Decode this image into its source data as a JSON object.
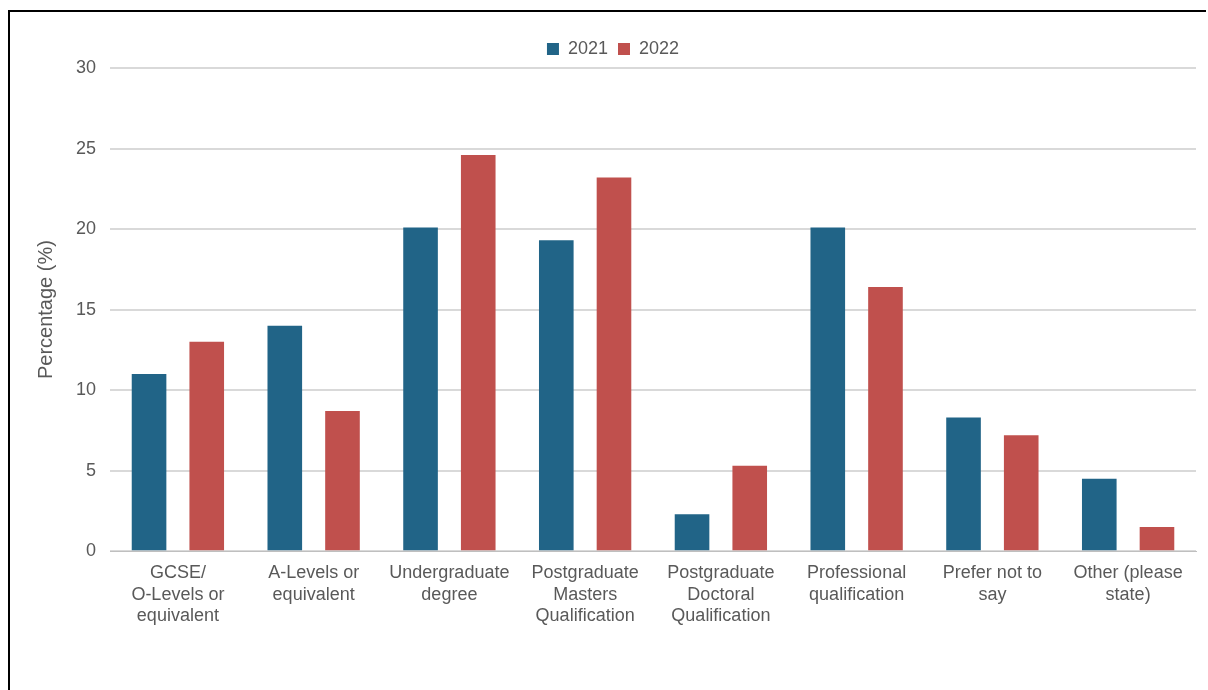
{
  "chart_data": {
    "type": "bar",
    "ylabel": "Percentage (%)",
    "categories": [
      "GCSE/ O-Levels or equivalent",
      "A-Levels or equivalent",
      "Undergraduate degree",
      "Postgraduate Masters Qualification",
      "Postgraduate Doctoral Qualification",
      "Professional qualification",
      "Prefer not to say",
      "Other (please state)"
    ],
    "series": [
      {
        "name": "2021",
        "color": "#216487",
        "values": [
          11.0,
          14.0,
          20.1,
          19.3,
          2.3,
          20.1,
          8.3,
          4.5
        ]
      },
      {
        "name": "2022",
        "color": "#c0504d",
        "values": [
          13.0,
          8.7,
          24.6,
          23.2,
          5.3,
          16.4,
          7.2,
          1.5
        ]
      }
    ],
    "ylim": [
      0,
      30
    ],
    "yticks": [
      0,
      5,
      10,
      15,
      20,
      25,
      30
    ],
    "grid": "y",
    "legend": "top"
  }
}
